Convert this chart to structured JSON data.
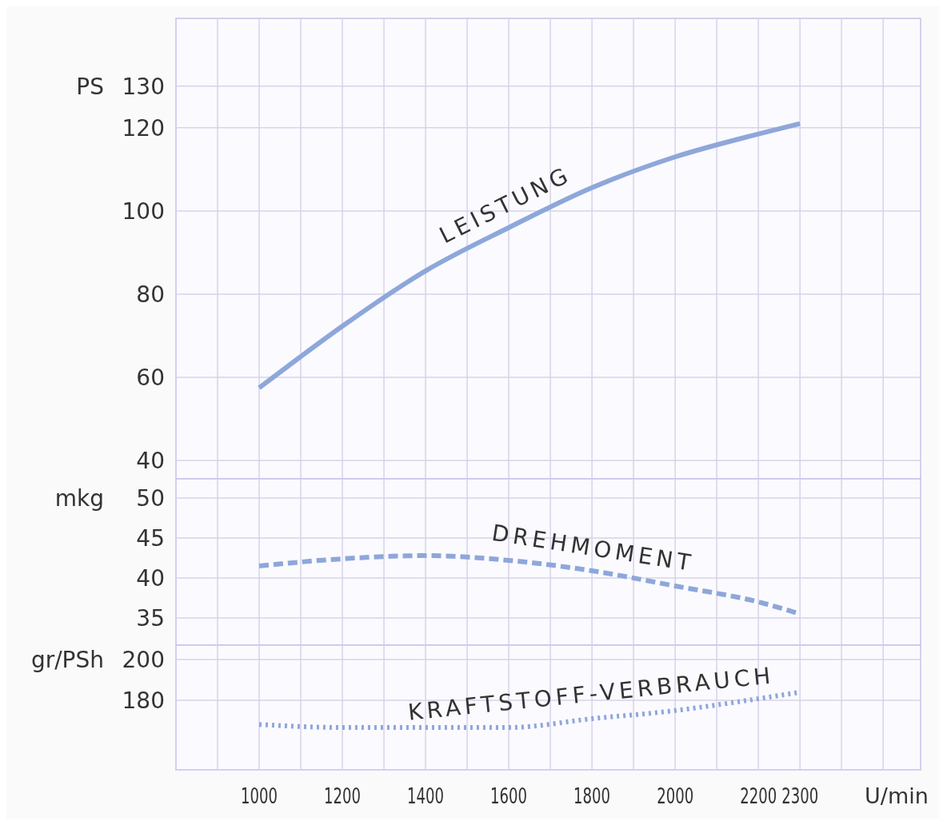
{
  "chart_data": [
    {
      "type": "line",
      "x": [
        1000,
        1100,
        1200,
        1400,
        1600,
        1800,
        2000,
        2200,
        2300
      ],
      "series": [
        {
          "name": "LEISTUNG",
          "color": "#8ea7da",
          "line_style": "solid",
          "values": [
            57.5,
            65,
            72.3,
            85.6,
            96,
            105.6,
            113,
            118.5,
            121
          ]
        }
      ],
      "xlim": [
        800,
        2590
      ],
      "xticks": [
        {
          "value": 900,
          "label": null
        },
        1000,
        {
          "value": 1100,
          "label": null
        },
        1200,
        {
          "value": 1300,
          "label": null
        },
        1400,
        {
          "value": 1500,
          "label": null
        },
        1600,
        {
          "value": 1700,
          "label": null
        },
        1800,
        {
          "value": 1900,
          "label": null
        },
        2000,
        {
          "value": 2100,
          "label": null
        },
        2200,
        2300,
        {
          "value": 2400,
          "label": null
        },
        {
          "value": 2500,
          "label": null
        }
      ],
      "ylim": [
        35.6,
        146.3
      ],
      "yticks": [
        40,
        60,
        80,
        100,
        120,
        130
      ],
      "ylabel": "PS",
      "grid": true,
      "tick_labels": "y"
    },
    {
      "type": "line",
      "x": [
        1000,
        1200,
        1400,
        1600,
        1800,
        2000,
        2200,
        2300
      ],
      "series": [
        {
          "name": "DREHMOMENT",
          "color": "#8ea7da",
          "line_style": "dashed",
          "values": [
            41.5,
            42.4,
            42.8,
            42.2,
            40.9,
            39,
            37,
            35.5
          ]
        }
      ],
      "xlim": [
        800,
        2590
      ],
      "xticks": [
        {
          "value": 900,
          "label": null
        },
        1000,
        {
          "value": 1100,
          "label": null
        },
        1200,
        {
          "value": 1300,
          "label": null
        },
        1400,
        {
          "value": 1500,
          "label": null
        },
        1600,
        {
          "value": 1700,
          "label": null
        },
        1800,
        {
          "value": 1900,
          "label": null
        },
        2000,
        {
          "value": 2100,
          "label": null
        },
        2200,
        2300,
        {
          "value": 2400,
          "label": null
        },
        {
          "value": 2500,
          "label": null
        }
      ],
      "ylim": [
        31.6,
        52.4
      ],
      "yticks": [
        35,
        40,
        45,
        50
      ],
      "ylabel": "mkg",
      "grid": true,
      "tick_labels": "y"
    },
    {
      "type": "line",
      "x": [
        1000,
        1200,
        1400,
        1600,
        1800,
        2000,
        2200,
        2300
      ],
      "series": [
        {
          "name": "KRAFTSTOFF-VERBRAUCH",
          "color": "#8ea7da",
          "line_style": "dotted",
          "values": [
            168.2,
            166.7,
            166.7,
            166.7,
            171,
            175,
            180.8,
            184
          ]
        }
      ],
      "xlim": [
        800,
        2590
      ],
      "xticks": [
        {
          "value": 900,
          "label": null
        },
        1000,
        {
          "value": 1100,
          "label": null
        },
        1200,
        {
          "value": 1300,
          "label": null
        },
        1400,
        {
          "value": 1500,
          "label": null
        },
        1600,
        {
          "value": 1700,
          "label": null
        },
        1800,
        {
          "value": 1900,
          "label": null
        },
        2000,
        {
          "value": 2100,
          "label": null
        },
        2200,
        2300,
        {
          "value": 2400,
          "label": null
        },
        {
          "value": 2500,
          "label": null
        }
      ],
      "ylim": [
        146,
        207
      ],
      "yticks": [
        180,
        200
      ],
      "ylabel": "gr/PSh",
      "xlabel": "U/min",
      "grid": true
    }
  ]
}
